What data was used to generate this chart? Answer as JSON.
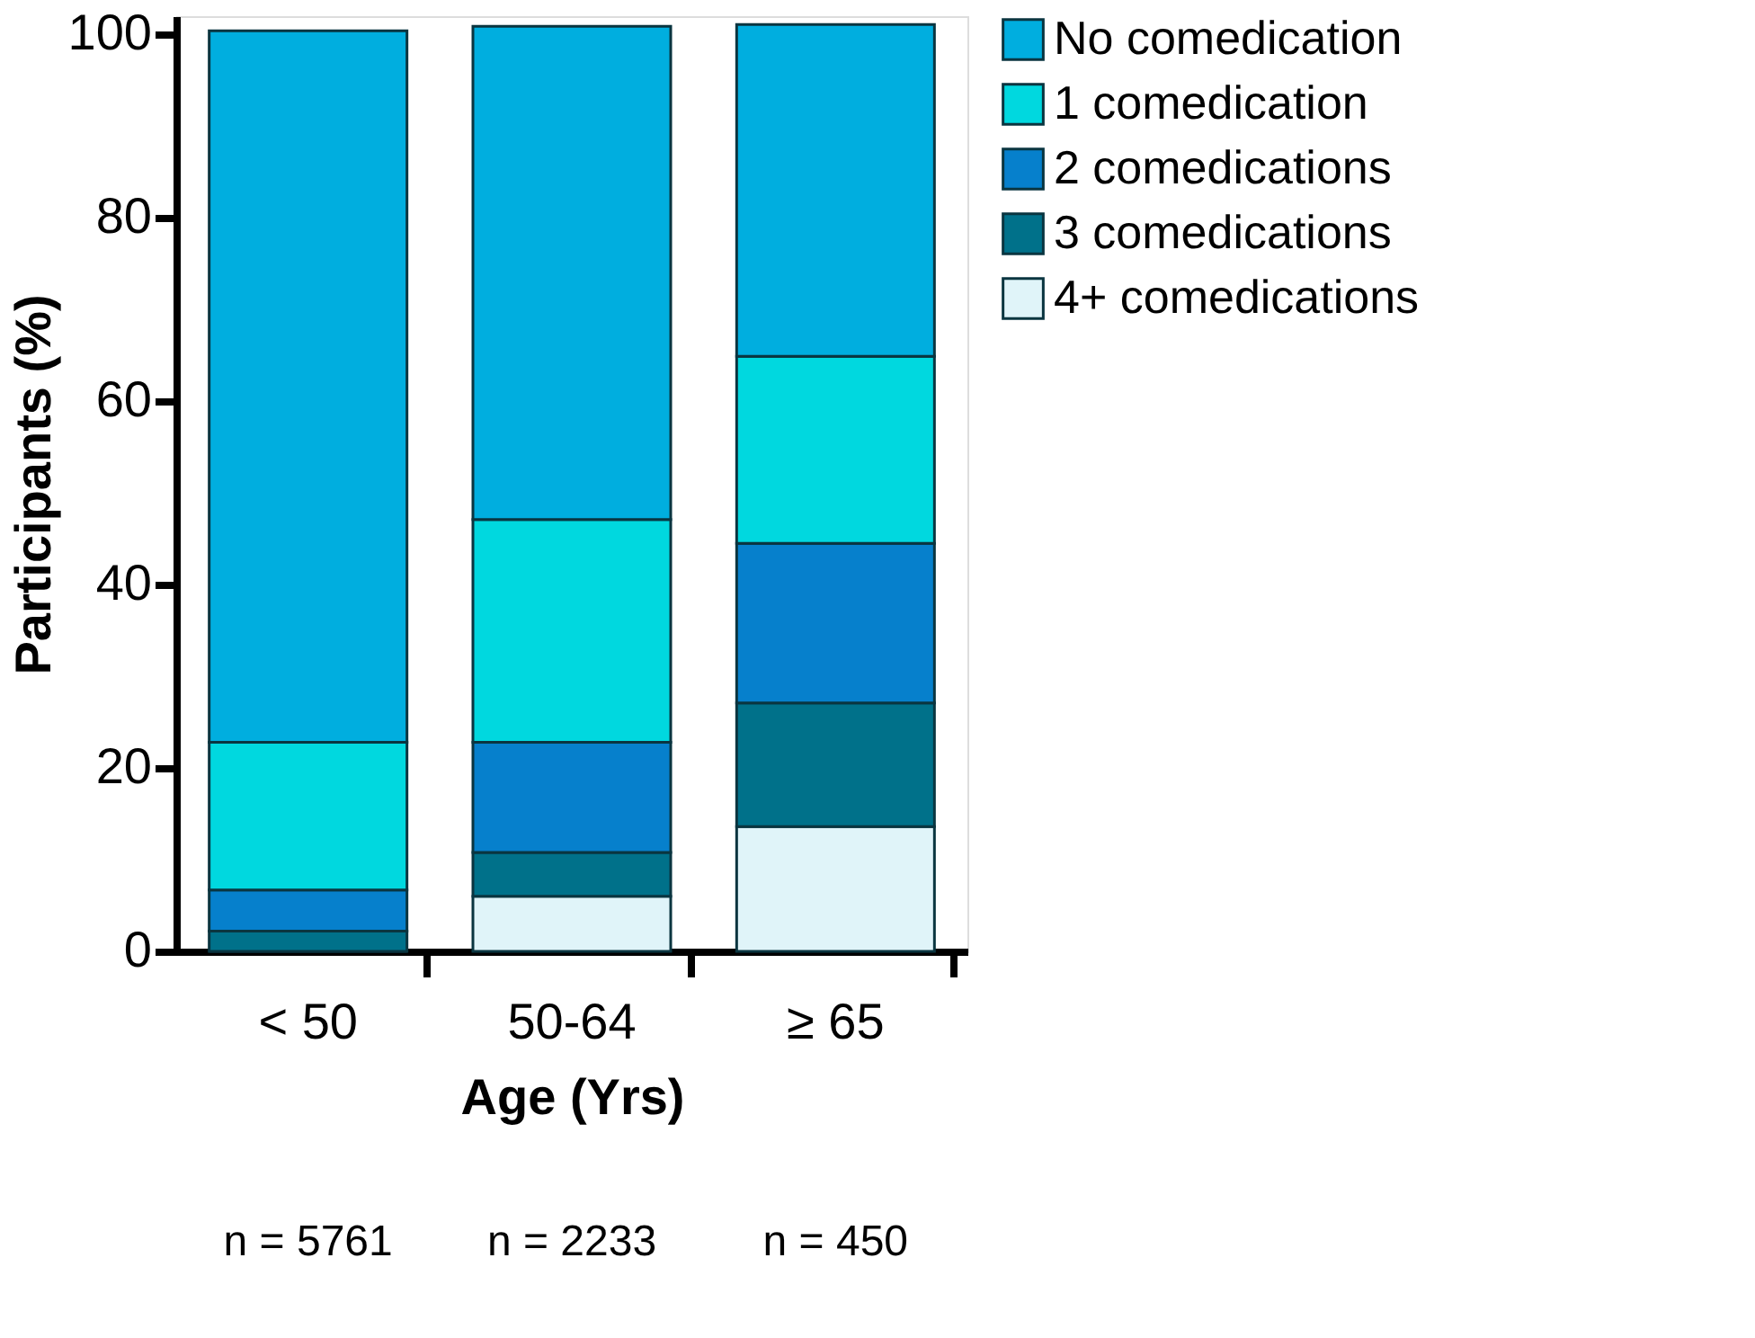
{
  "chart_data": {
    "type": "bar",
    "stacked": true,
    "xlabel": "Age (Yrs)",
    "ylabel": "Participants (%)",
    "categories": [
      "< 50",
      "50-64",
      "≥ 65"
    ],
    "series": [
      {
        "name": "4+ comedications",
        "color": "#e0f4f9",
        "values": [
          0,
          6.0,
          13.6
        ]
      },
      {
        "name": "3 comedications",
        "color": "#00718a",
        "values": [
          2.2,
          4.8,
          13.5
        ]
      },
      {
        "name": "2 comedications",
        "color": "#0680cc",
        "values": [
          4.5,
          12.0,
          17.4
        ]
      },
      {
        "name": "1 comedication",
        "color": "#00d8df",
        "values": [
          16.1,
          24.3,
          20.4
        ]
      },
      {
        "name": "No comedication",
        "color": "#00aedf",
        "values": [
          77.6,
          53.8,
          36.2
        ]
      }
    ],
    "ylim": [
      0,
      102
    ],
    "yticks": [
      0,
      20,
      40,
      60,
      80,
      100
    ],
    "grid": false,
    "legend": "top right",
    "annotations": [
      "n = 5761",
      "n = 2233",
      "n = 450"
    ]
  }
}
